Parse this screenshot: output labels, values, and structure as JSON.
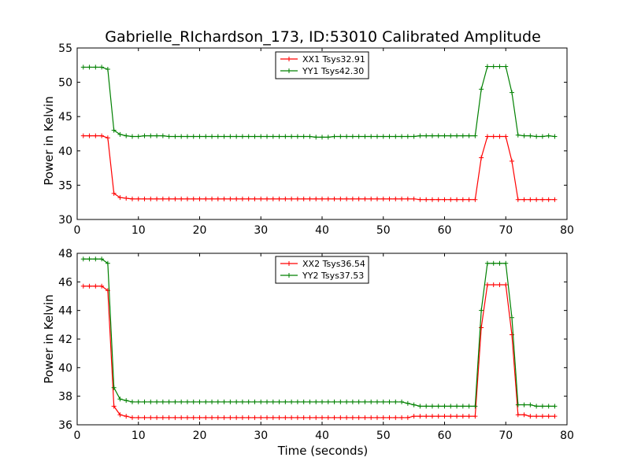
{
  "title": "Gabrielle_RIchardson_173, ID:53010 Calibrated Amplitude",
  "xlabel": "Time (seconds)",
  "colors": {
    "red": "#ff0000",
    "green": "#008000"
  },
  "chart_data": [
    {
      "type": "line",
      "title": "Gabrielle_RIchardson_173, ID:53010 Calibrated Amplitude",
      "xlabel": "",
      "ylabel": "Power in Kelvin",
      "xlim": [
        0,
        80
      ],
      "ylim": [
        30,
        55
      ],
      "xticks": [
        0,
        10,
        20,
        30,
        40,
        50,
        60,
        70,
        80
      ],
      "yticks": [
        30,
        35,
        40,
        45,
        50,
        55
      ],
      "legend": "top-center",
      "grid": false,
      "x": [
        1,
        2,
        3,
        4,
        5,
        6,
        7,
        8,
        9,
        10,
        11,
        12,
        13,
        14,
        15,
        16,
        17,
        18,
        19,
        20,
        21,
        22,
        23,
        24,
        25,
        26,
        27,
        28,
        29,
        30,
        31,
        32,
        33,
        34,
        35,
        36,
        37,
        38,
        39,
        40,
        41,
        42,
        43,
        44,
        45,
        46,
        47,
        48,
        49,
        50,
        51,
        52,
        53,
        54,
        55,
        56,
        57,
        58,
        59,
        60,
        61,
        62,
        63,
        64,
        65,
        66,
        67,
        68,
        69,
        70,
        71,
        72,
        73,
        74,
        75,
        76,
        77,
        78
      ],
      "series": [
        {
          "name": "XX1 Tsys32.91",
          "color": "#ff0000",
          "values": [
            42.2,
            42.2,
            42.2,
            42.2,
            41.9,
            33.8,
            33.2,
            33.1,
            33.0,
            33.0,
            33.0,
            33.0,
            33.0,
            33.0,
            33.0,
            33.0,
            33.0,
            33.0,
            33.0,
            33.0,
            33.0,
            33.0,
            33.0,
            33.0,
            33.0,
            33.0,
            33.0,
            33.0,
            33.0,
            33.0,
            33.0,
            33.0,
            33.0,
            33.0,
            33.0,
            33.0,
            33.0,
            33.0,
            33.0,
            33.0,
            33.0,
            33.0,
            33.0,
            33.0,
            33.0,
            33.0,
            33.0,
            33.0,
            33.0,
            33.0,
            33.0,
            33.0,
            33.0,
            33.0,
            33.0,
            32.9,
            32.9,
            32.9,
            32.9,
            32.9,
            32.9,
            32.9,
            32.9,
            32.9,
            32.9,
            39.0,
            42.1,
            42.1,
            42.1,
            42.1,
            38.5,
            32.9,
            32.9,
            32.9,
            32.9,
            32.9,
            32.9,
            32.9
          ]
        },
        {
          "name": "YY1 Tsys42.30",
          "color": "#008000",
          "values": [
            52.2,
            52.2,
            52.2,
            52.2,
            51.9,
            43.0,
            42.4,
            42.2,
            42.1,
            42.1,
            42.2,
            42.2,
            42.2,
            42.2,
            42.1,
            42.1,
            42.1,
            42.1,
            42.1,
            42.1,
            42.1,
            42.1,
            42.1,
            42.1,
            42.1,
            42.1,
            42.1,
            42.1,
            42.1,
            42.1,
            42.1,
            42.1,
            42.1,
            42.1,
            42.1,
            42.1,
            42.1,
            42.1,
            42.0,
            42.0,
            42.0,
            42.1,
            42.1,
            42.1,
            42.1,
            42.1,
            42.1,
            42.1,
            42.1,
            42.1,
            42.1,
            42.1,
            42.1,
            42.1,
            42.1,
            42.2,
            42.2,
            42.2,
            42.2,
            42.2,
            42.2,
            42.2,
            42.2,
            42.2,
            42.2,
            49.0,
            52.3,
            52.3,
            52.3,
            52.3,
            48.5,
            42.3,
            42.2,
            42.2,
            42.1,
            42.1,
            42.2,
            42.1
          ]
        }
      ]
    },
    {
      "type": "line",
      "title": "",
      "xlabel": "Time (seconds)",
      "ylabel": "Power in Kelvin",
      "xlim": [
        0,
        80
      ],
      "ylim": [
        36,
        48
      ],
      "xticks": [
        0,
        10,
        20,
        30,
        40,
        50,
        60,
        70,
        80
      ],
      "yticks": [
        36,
        38,
        40,
        42,
        44,
        46,
        48
      ],
      "legend": "top-center",
      "grid": false,
      "x": [
        1,
        2,
        3,
        4,
        5,
        6,
        7,
        8,
        9,
        10,
        11,
        12,
        13,
        14,
        15,
        16,
        17,
        18,
        19,
        20,
        21,
        22,
        23,
        24,
        25,
        26,
        27,
        28,
        29,
        30,
        31,
        32,
        33,
        34,
        35,
        36,
        37,
        38,
        39,
        40,
        41,
        42,
        43,
        44,
        45,
        46,
        47,
        48,
        49,
        50,
        51,
        52,
        53,
        54,
        55,
        56,
        57,
        58,
        59,
        60,
        61,
        62,
        63,
        64,
        65,
        66,
        67,
        68,
        69,
        70,
        71,
        72,
        73,
        74,
        75,
        76,
        77,
        78
      ],
      "series": [
        {
          "name": "XX2 Tsys36.54",
          "color": "#ff0000",
          "values": [
            45.7,
            45.7,
            45.7,
            45.7,
            45.4,
            37.3,
            36.7,
            36.6,
            36.5,
            36.5,
            36.5,
            36.5,
            36.5,
            36.5,
            36.5,
            36.5,
            36.5,
            36.5,
            36.5,
            36.5,
            36.5,
            36.5,
            36.5,
            36.5,
            36.5,
            36.5,
            36.5,
            36.5,
            36.5,
            36.5,
            36.5,
            36.5,
            36.5,
            36.5,
            36.5,
            36.5,
            36.5,
            36.5,
            36.5,
            36.5,
            36.5,
            36.5,
            36.5,
            36.5,
            36.5,
            36.5,
            36.5,
            36.5,
            36.5,
            36.5,
            36.5,
            36.5,
            36.5,
            36.5,
            36.6,
            36.6,
            36.6,
            36.6,
            36.6,
            36.6,
            36.6,
            36.6,
            36.6,
            36.6,
            36.6,
            42.8,
            45.8,
            45.8,
            45.8,
            45.8,
            42.3,
            36.7,
            36.7,
            36.6,
            36.6,
            36.6,
            36.6,
            36.6
          ]
        },
        {
          "name": "YY2 Tsys37.53",
          "color": "#008000",
          "values": [
            47.6,
            47.6,
            47.6,
            47.6,
            47.3,
            38.6,
            37.8,
            37.7,
            37.6,
            37.6,
            37.6,
            37.6,
            37.6,
            37.6,
            37.6,
            37.6,
            37.6,
            37.6,
            37.6,
            37.6,
            37.6,
            37.6,
            37.6,
            37.6,
            37.6,
            37.6,
            37.6,
            37.6,
            37.6,
            37.6,
            37.6,
            37.6,
            37.6,
            37.6,
            37.6,
            37.6,
            37.6,
            37.6,
            37.6,
            37.6,
            37.6,
            37.6,
            37.6,
            37.6,
            37.6,
            37.6,
            37.6,
            37.6,
            37.6,
            37.6,
            37.6,
            37.6,
            37.6,
            37.5,
            37.4,
            37.3,
            37.3,
            37.3,
            37.3,
            37.3,
            37.3,
            37.3,
            37.3,
            37.3,
            37.3,
            44.0,
            47.3,
            47.3,
            47.3,
            47.3,
            43.5,
            37.4,
            37.4,
            37.4,
            37.3,
            37.3,
            37.3,
            37.3
          ]
        }
      ]
    }
  ]
}
